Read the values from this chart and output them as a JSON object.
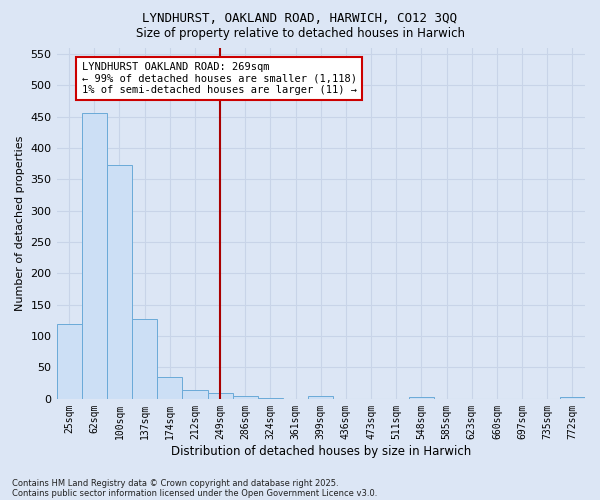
{
  "title1": "LYNDHURST, OAKLAND ROAD, HARWICH, CO12 3QQ",
  "title2": "Size of property relative to detached houses in Harwich",
  "xlabel": "Distribution of detached houses by size in Harwich",
  "ylabel": "Number of detached properties",
  "categories": [
    "25sqm",
    "62sqm",
    "100sqm",
    "137sqm",
    "174sqm",
    "212sqm",
    "249sqm",
    "286sqm",
    "324sqm",
    "361sqm",
    "399sqm",
    "436sqm",
    "473sqm",
    "511sqm",
    "548sqm",
    "585sqm",
    "623sqm",
    "660sqm",
    "697sqm",
    "735sqm",
    "772sqm"
  ],
  "values": [
    120,
    455,
    372,
    128,
    35,
    14,
    9,
    5,
    1,
    0,
    4,
    0,
    0,
    0,
    3,
    0,
    0,
    0,
    0,
    0,
    3
  ],
  "bar_color": "#ccdff5",
  "bar_edge_color": "#6aaad8",
  "grid_color": "#c8d4e8",
  "bg_color": "#dce6f5",
  "vline_x_index": 6,
  "vline_color": "#aa0000",
  "annotation_text": "LYNDHURST OAKLAND ROAD: 269sqm\n← 99% of detached houses are smaller (1,118)\n1% of semi-detached houses are larger (11) →",
  "annotation_box_color": "white",
  "annotation_box_edge": "#cc0000",
  "ylim": [
    0,
    560
  ],
  "yticks": [
    0,
    50,
    100,
    150,
    200,
    250,
    300,
    350,
    400,
    450,
    500,
    550
  ],
  "footer1": "Contains HM Land Registry data © Crown copyright and database right 2025.",
  "footer2": "Contains public sector information licensed under the Open Government Licence v3.0."
}
